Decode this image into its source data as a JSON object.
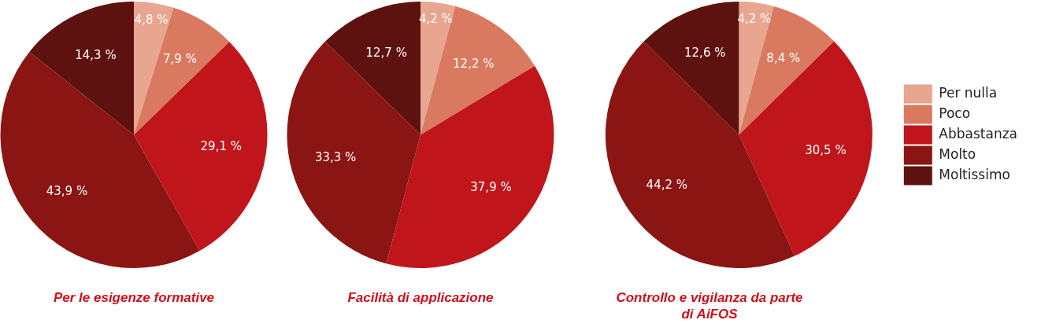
{
  "chart_data": [
    {
      "type": "pie",
      "title": "Per le esigenze formative",
      "categories": [
        null,
        null,
        null,
        null,
        null
      ],
      "values": [
        4.8,
        7.9,
        29.1,
        43.9,
        14.3
      ],
      "value_labels": [
        "4,8 %",
        "7,9 %",
        "29,1 %",
        "43,9 %",
        "14,3 %"
      ],
      "colors": [
        "#e8a590",
        "#d97a60",
        "#c0161b",
        "#8b1512",
        "#5e1210"
      ],
      "legend": false
    },
    {
      "type": "pie",
      "title": "Facilità di applicazione",
      "categories": [
        null,
        null,
        null,
        null,
        null
      ],
      "values": [
        4.2,
        12.2,
        37.9,
        33.3,
        12.7
      ],
      "value_labels": [
        "4,2 %",
        "12,2 %",
        "37,9 %",
        "33,3 %",
        "12,7 %"
      ],
      "colors": [
        "#e8a590",
        "#d97a60",
        "#c0161b",
        "#8b1512",
        "#5e1210"
      ],
      "legend": false
    },
    {
      "type": "pie",
      "title": "Controllo e vigilanza da parte di AiFOS",
      "categories": [
        "Per nulla",
        "Poco",
        "Abbastanza",
        "Molto",
        "Moltissimo"
      ],
      "values": [
        4.2,
        8.4,
        30.5,
        44.2,
        12.6
      ],
      "value_labels": [
        "4,2 %",
        "8,4 %",
        "30,5 %",
        "44,2 %",
        "12,6 %"
      ],
      "colors": [
        "#e8a590",
        "#d97a60",
        "#c0161b",
        "#8b1512",
        "#5e1210"
      ],
      "legend": "right"
    }
  ]
}
